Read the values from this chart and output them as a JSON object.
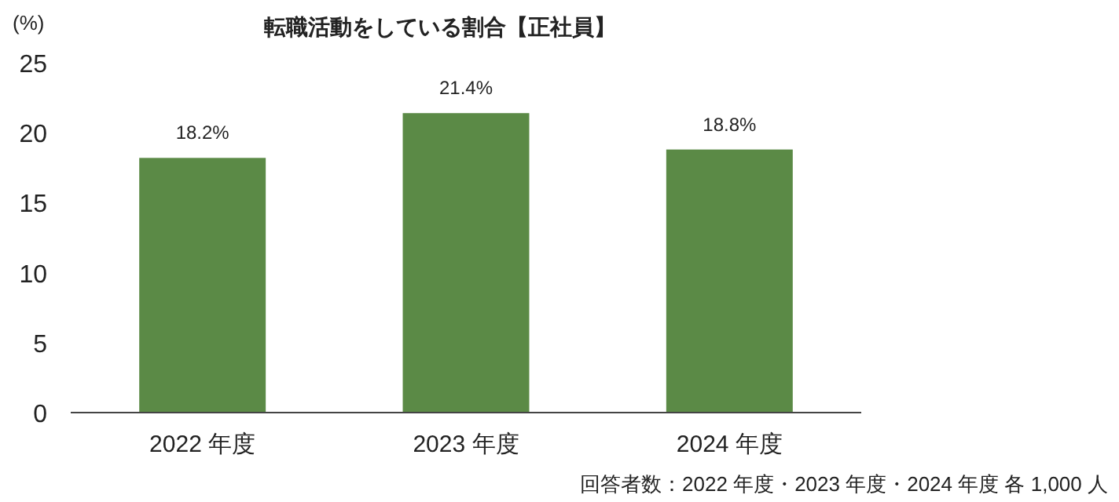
{
  "chart_data": {
    "type": "bar",
    "title": "転職活動をしている割合【正社員】",
    "ylabel": "(%)",
    "categories": [
      "2022 年度",
      "2023 年度",
      "2024 年度"
    ],
    "values": [
      18.2,
      21.4,
      18.8
    ],
    "value_labels": [
      "18.2%",
      "21.4%",
      "18.8%"
    ],
    "color": "#5b8a46",
    "ylim": [
      0,
      25
    ],
    "yticks": [
      0,
      5,
      10,
      15,
      20,
      25
    ],
    "annotations": [
      "回答者数：2022 年度・2023 年度・2024 年度 各 1,000 人"
    ]
  }
}
